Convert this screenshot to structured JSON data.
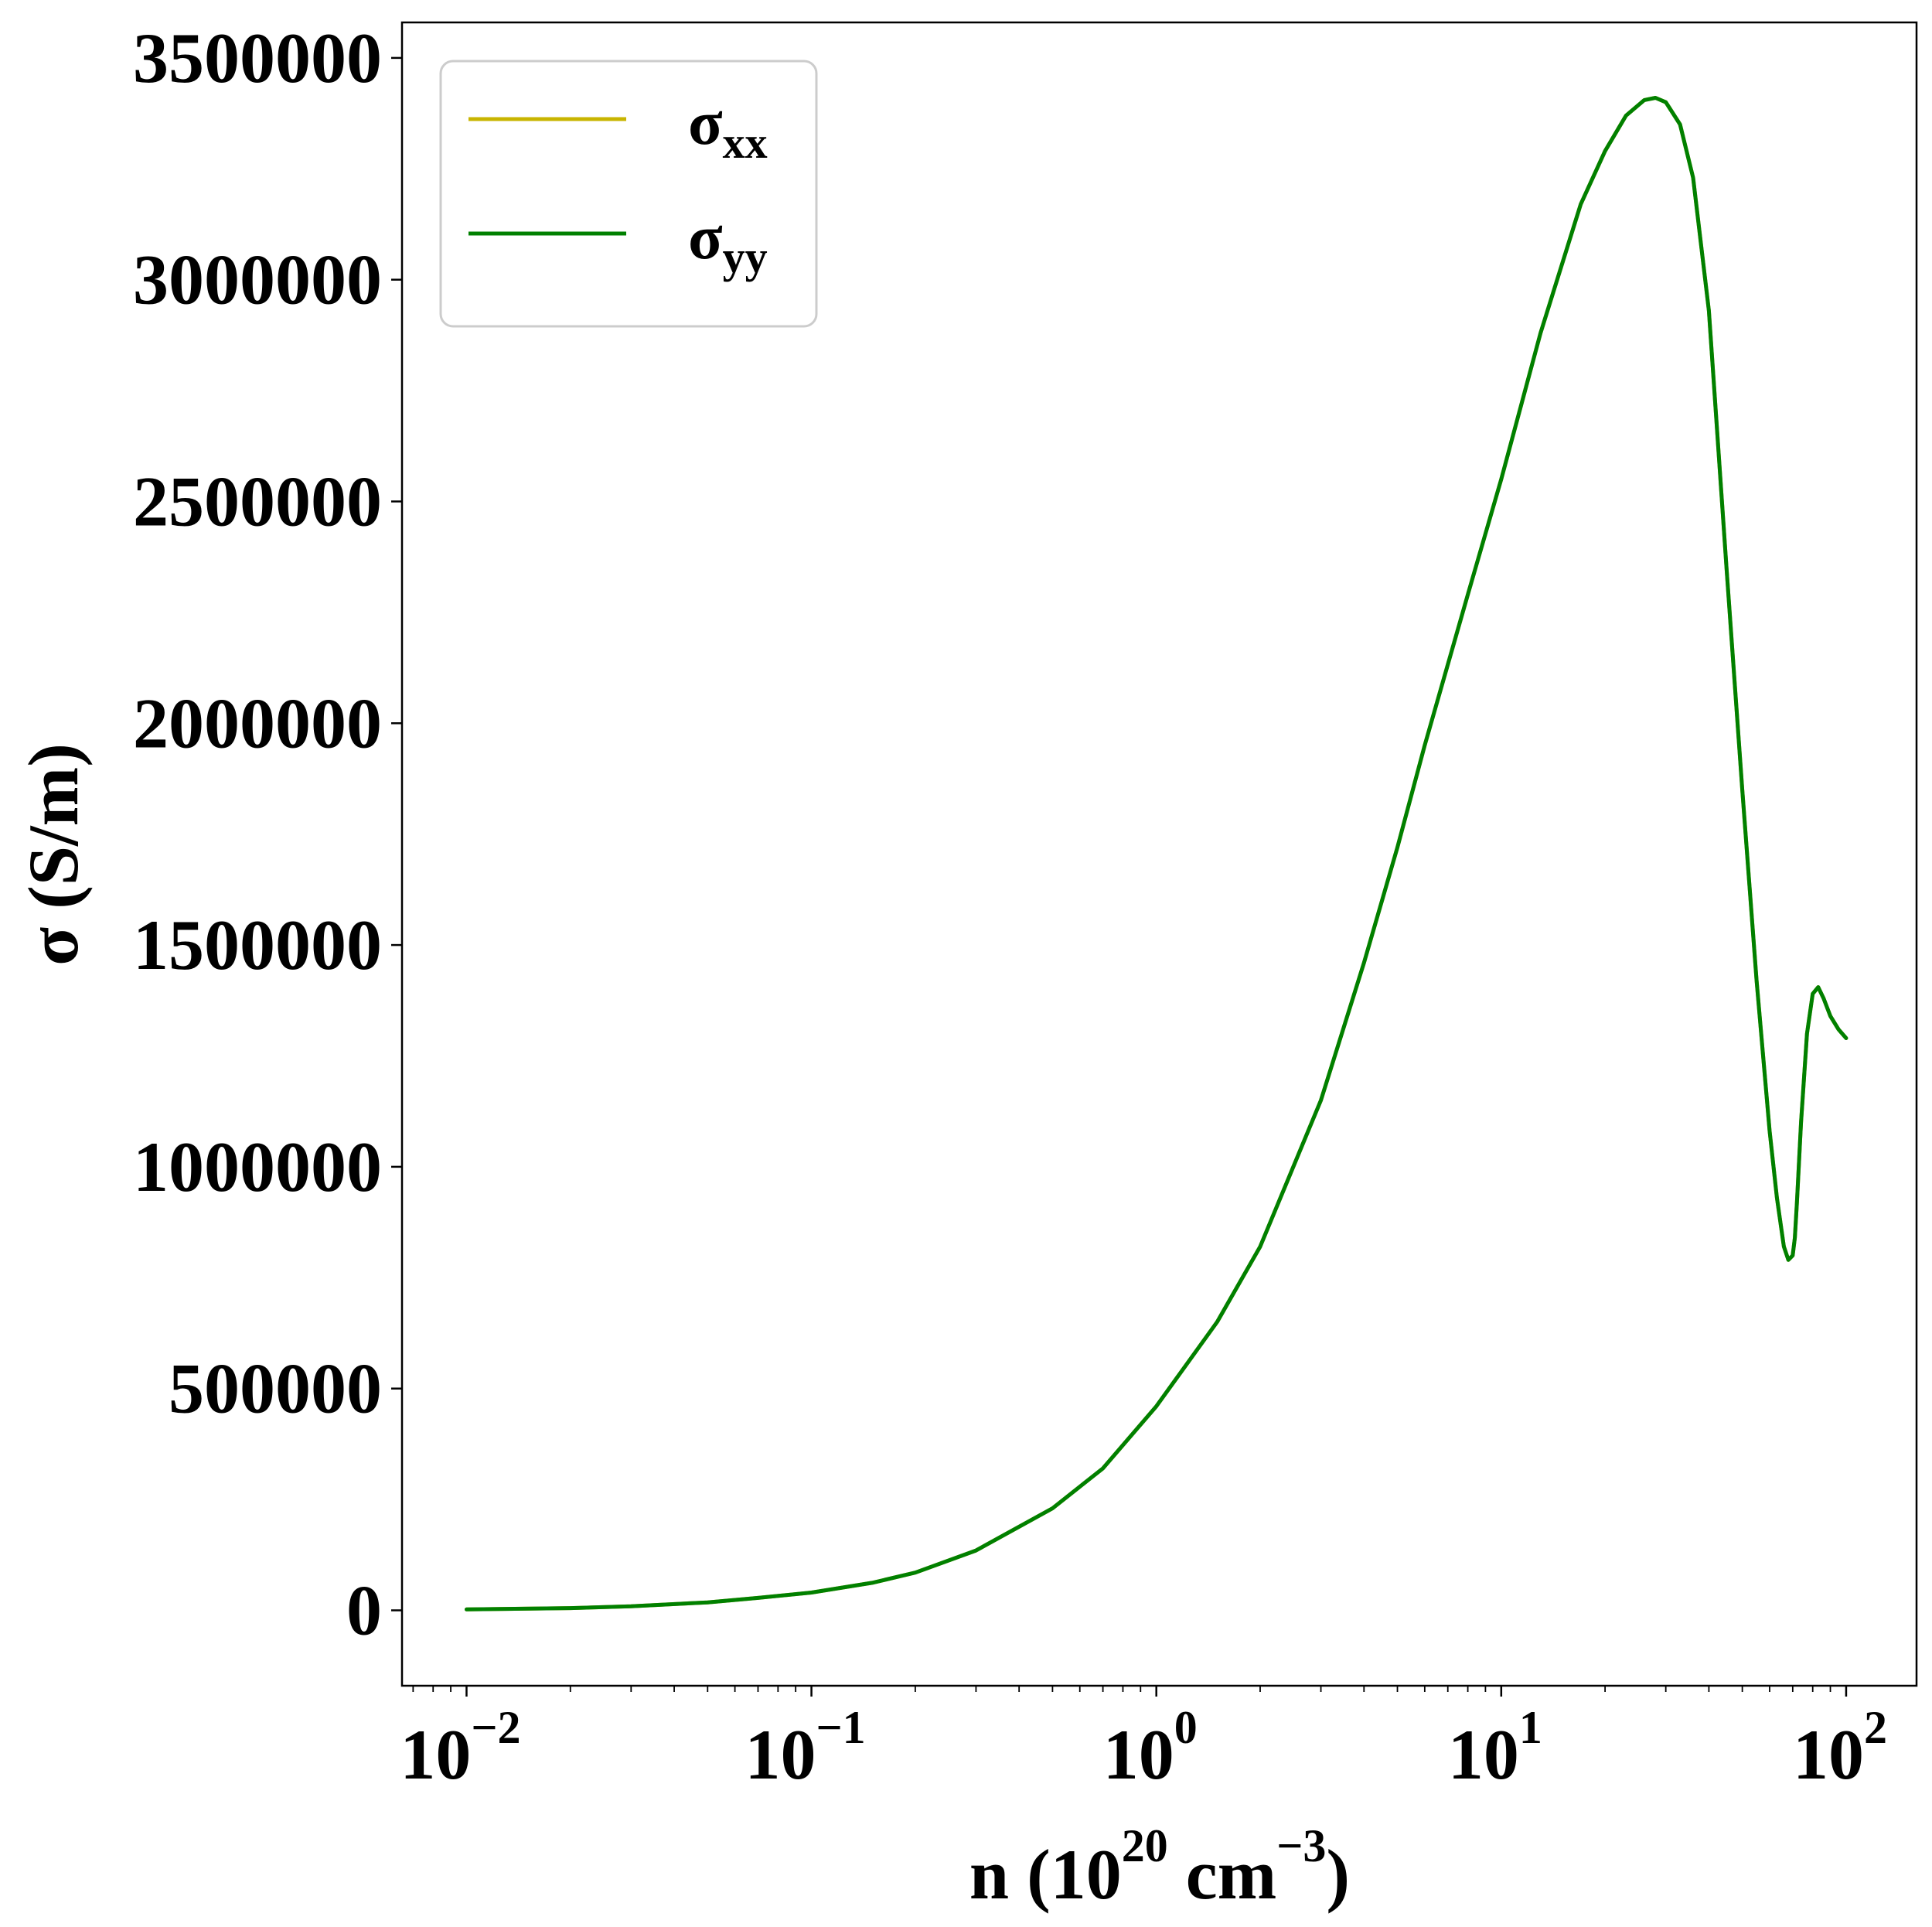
{
  "chart_data": {
    "type": "line",
    "xscale": "log",
    "xlim": [
      0.0065,
      160
    ],
    "ylim": [
      -170000,
      3580000
    ],
    "xlabel": {
      "base": "n (10",
      "sup1": "20",
      "mid": " cm",
      "sup2": "−3",
      "end": ")"
    },
    "ylabel": "σ (S/m)",
    "yticks": [
      0,
      500000,
      1000000,
      1500000,
      2000000,
      2500000,
      3000000,
      3500000
    ],
    "ytick_labels": [
      "0",
      "500000",
      "1000000",
      "1500000",
      "2000000",
      "2500000",
      "3000000",
      "3500000"
    ],
    "xticks": [
      0.01,
      0.1,
      1,
      10,
      100
    ],
    "xtick_labels": [
      {
        "base": "10",
        "exp": "−2"
      },
      {
        "base": "10",
        "exp": "−1"
      },
      {
        "base": "10",
        "exp": "0"
      },
      {
        "base": "10",
        "exp": "1"
      },
      {
        "base": "10",
        "exp": "2"
      }
    ],
    "grid": false,
    "legend_position": "top-left",
    "series": [
      {
        "name": "σ",
        "subscript": "xx",
        "color": "#c8b400",
        "x": [
          0.01,
          0.02,
          0.03,
          0.05,
          0.07,
          0.1,
          0.15,
          0.2,
          0.3,
          0.5,
          0.7,
          1.0,
          1.5,
          2.0,
          3.0,
          4.0,
          5.0,
          6.0,
          8.0,
          10,
          13,
          17,
          20,
          23,
          26,
          28,
          30,
          33,
          36,
          40,
          45,
          50,
          55,
          60,
          63,
          66,
          68,
          70,
          71,
          72,
          74,
          77,
          80,
          83,
          86,
          90,
          95,
          100
        ],
        "y": [
          2000,
          5000,
          9000,
          18000,
          28000,
          40000,
          62000,
          85000,
          135000,
          230000,
          320000,
          460000,
          650000,
          820000,
          1150000,
          1460000,
          1720000,
          1950000,
          2290000,
          2550000,
          2880000,
          3170000,
          3290000,
          3370000,
          3405000,
          3410000,
          3400000,
          3350000,
          3230000,
          2930000,
          2350000,
          1850000,
          1420000,
          1080000,
          930000,
          820000,
          790000,
          800000,
          840000,
          920000,
          1100000,
          1300000,
          1390000,
          1405000,
          1380000,
          1340000,
          1310000,
          1290000
        ]
      },
      {
        "name": "σ",
        "subscript": "yy",
        "color": "#008000",
        "x": [
          0.01,
          0.02,
          0.03,
          0.05,
          0.07,
          0.1,
          0.15,
          0.2,
          0.3,
          0.5,
          0.7,
          1.0,
          1.5,
          2.0,
          3.0,
          4.0,
          5.0,
          6.0,
          8.0,
          10,
          13,
          17,
          20,
          23,
          26,
          28,
          30,
          33,
          36,
          40,
          45,
          50,
          55,
          60,
          63,
          66,
          68,
          70,
          71,
          72,
          74,
          77,
          80,
          83,
          86,
          90,
          95,
          100
        ],
        "y": [
          2000,
          5000,
          9000,
          18000,
          28000,
          40000,
          62000,
          85000,
          135000,
          230000,
          320000,
          460000,
          650000,
          820000,
          1150000,
          1460000,
          1720000,
          1950000,
          2290000,
          2550000,
          2880000,
          3170000,
          3290000,
          3370000,
          3405000,
          3410000,
          3400000,
          3350000,
          3230000,
          2930000,
          2350000,
          1850000,
          1420000,
          1080000,
          930000,
          820000,
          790000,
          800000,
          840000,
          920000,
          1100000,
          1300000,
          1390000,
          1405000,
          1380000,
          1340000,
          1310000,
          1290000
        ]
      }
    ]
  }
}
